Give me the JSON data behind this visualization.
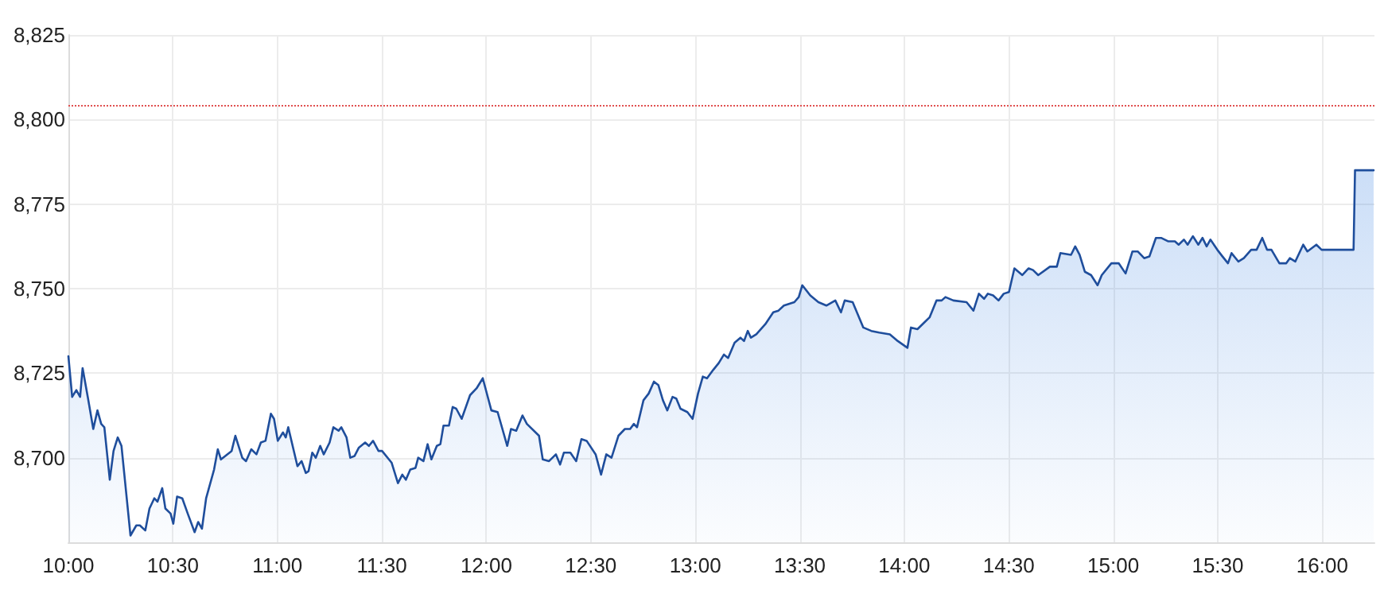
{
  "chart_data": {
    "type": "area",
    "xlim": [
      10,
      16.25
    ],
    "xticks": [
      {
        "value": 10,
        "label": "10:00"
      },
      {
        "value": 10.5,
        "label": "10:30"
      },
      {
        "value": 11,
        "label": "11:00"
      },
      {
        "value": 11.5,
        "label": "11:30"
      },
      {
        "value": 12,
        "label": "12:00"
      },
      {
        "value": 12.5,
        "label": "12:30"
      },
      {
        "value": 13,
        "label": "13:00"
      },
      {
        "value": 13.5,
        "label": "13:30"
      },
      {
        "value": 14,
        "label": "14:00"
      },
      {
        "value": 14.5,
        "label": "14:30"
      },
      {
        "value": 15,
        "label": "15:00"
      },
      {
        "value": 15.5,
        "label": "15:30"
      },
      {
        "value": 16,
        "label": "16:00"
      }
    ],
    "ylim": [
      8675,
      8825
    ],
    "yticks": [
      {
        "value": 8700,
        "label": "8,700"
      },
      {
        "value": 8725,
        "label": "8,725"
      },
      {
        "value": 8750,
        "label": "8,750"
      },
      {
        "value": 8775,
        "label": "8,775"
      },
      {
        "value": 8800,
        "label": "8,800"
      },
      {
        "value": 8825,
        "label": "8,825"
      }
    ],
    "grid": true,
    "marker": "none",
    "line_style": "solid",
    "ref_lines": [
      {
        "axis": "y",
        "value": 8804,
        "color": "#e05050",
        "line_style": "dotted"
      }
    ],
    "series": [
      {
        "color": "#1f4e9c",
        "x": [
          10.0,
          10.018,
          10.038,
          10.056,
          10.068,
          10.094,
          10.119,
          10.139,
          10.157,
          10.172,
          10.198,
          10.216,
          10.236,
          10.254,
          10.297,
          10.325,
          10.342,
          10.368,
          10.388,
          10.411,
          10.426,
          10.449,
          10.464,
          10.489,
          10.502,
          10.52,
          10.545,
          10.571,
          10.604,
          10.621,
          10.639,
          10.659,
          10.697,
          10.715,
          10.73,
          10.781,
          10.799,
          10.832,
          10.85,
          10.875,
          10.9,
          10.921,
          10.943,
          10.969,
          10.984,
          11.002,
          11.027,
          11.04,
          11.052,
          11.096,
          11.116,
          11.136,
          11.149,
          11.167,
          11.184,
          11.205,
          11.222,
          11.25,
          11.268,
          11.293,
          11.306,
          11.331,
          11.349,
          11.369,
          11.39,
          11.42,
          11.438,
          11.458,
          11.484,
          11.501,
          11.547,
          11.577,
          11.598,
          11.615,
          11.636,
          11.661,
          11.674,
          11.699,
          11.719,
          11.737,
          11.763,
          11.78,
          11.795,
          11.821,
          11.839,
          11.856,
          11.882,
          11.922,
          11.953,
          11.983,
          12.024,
          12.054,
          12.1,
          12.118,
          12.143,
          12.173,
          12.194,
          12.252,
          12.27,
          12.3,
          12.333,
          12.353,
          12.371,
          12.402,
          12.43,
          12.455,
          12.48,
          12.523,
          12.549,
          12.574,
          12.599,
          12.632,
          12.663,
          12.688,
          12.706,
          12.721,
          12.752,
          12.777,
          12.802,
          12.823,
          12.845,
          12.866,
          12.891,
          12.909,
          12.929,
          12.962,
          12.987,
          13.013,
          13.036,
          13.056,
          13.086,
          13.112,
          13.137,
          13.157,
          13.188,
          13.216,
          13.233,
          13.251,
          13.266,
          13.292,
          13.335,
          13.373,
          13.398,
          13.424,
          13.474,
          13.495,
          13.512,
          13.55,
          13.589,
          13.627,
          13.67,
          13.697,
          13.715,
          13.753,
          13.804,
          13.842,
          13.88,
          13.931,
          13.969,
          14.015,
          14.032,
          14.063,
          14.096,
          14.121,
          14.154,
          14.179,
          14.197,
          14.235,
          14.298,
          14.331,
          14.357,
          14.382,
          14.4,
          14.425,
          14.451,
          14.476,
          14.501,
          14.527,
          14.565,
          14.595,
          14.616,
          14.641,
          14.697,
          14.73,
          14.747,
          14.798,
          14.818,
          14.839,
          14.864,
          14.894,
          14.925,
          14.945,
          14.991,
          15.026,
          15.059,
          15.092,
          15.117,
          15.148,
          15.173,
          15.204,
          15.229,
          15.262,
          15.295,
          15.313,
          15.338,
          15.356,
          15.381,
          15.407,
          15.427,
          15.447,
          15.465,
          15.498,
          15.523,
          15.549,
          15.566,
          15.599,
          15.625,
          15.66,
          15.686,
          15.713,
          15.736,
          15.757,
          15.795,
          15.828,
          15.845,
          15.871,
          15.909,
          15.929,
          15.972,
          15.997,
          16.15,
          16.157,
          16.246
        ],
        "values": [
          8730,
          8718,
          8720,
          8718,
          8726.5,
          8717.5,
          8708.5,
          8714,
          8710,
          8709,
          8693.5,
          8702,
          8706,
          8703.5,
          8677,
          8680,
          8680,
          8678.5,
          8685,
          8688,
          8687,
          8691,
          8685,
          8683.5,
          8680.5,
          8688.5,
          8688,
          8683.5,
          8678,
          8681,
          8679,
          8688,
          8696.5,
          8702.5,
          8699.5,
          8702,
          8706.5,
          8700,
          8699,
          8702.5,
          8701,
          8704.5,
          8705,
          8713,
          8711.5,
          8705,
          8707.5,
          8706,
          8709,
          8697.5,
          8699,
          8695.5,
          8696,
          8701.5,
          8700,
          8703.5,
          8701,
          8704.5,
          8709,
          8708,
          8709,
          8706,
          8700,
          8700.5,
          8703,
          8704.5,
          8703.5,
          8705,
          8702,
          8702,
          8698.5,
          8692.5,
          8695,
          8693.5,
          8696.5,
          8697,
          8700,
          8699,
          8704,
          8699.5,
          8703.5,
          8704,
          8709.5,
          8709.5,
          8715,
          8714.5,
          8711.5,
          8718.5,
          8720.5,
          8723.5,
          8714,
          8713.5,
          8703.5,
          8708.5,
          8708,
          8712.5,
          8710,
          8706.5,
          8699.5,
          8699,
          8701,
          8698,
          8701.5,
          8701.5,
          8699,
          8705.5,
          8705,
          8701,
          8695,
          8701,
          8700,
          8706.5,
          8708.5,
          8708.5,
          8710,
          8709,
          8717,
          8719,
          8722.5,
          8721.5,
          8717,
          8714,
          8718,
          8717.5,
          8714.5,
          8713.5,
          8711.5,
          8719,
          8724,
          8723.5,
          8726,
          8728,
          8730.5,
          8729.5,
          8734,
          8735.5,
          8734.5,
          8737.5,
          8735.5,
          8736.5,
          8739.5,
          8743,
          8743.5,
          8745,
          8746,
          8747.5,
          8751,
          8748,
          8746,
          8745,
          8746.5,
          8743,
          8746.5,
          8746,
          8738.5,
          8737.5,
          8737,
          8736.5,
          8734.5,
          8732.5,
          8738.5,
          8738,
          8740,
          8741.5,
          8746.5,
          8746.5,
          8747.5,
          8746.5,
          8746,
          8743.5,
          8748.5,
          8747,
          8748.5,
          8748,
          8746.5,
          8748.5,
          8749,
          8756,
          8754,
          8756,
          8755.5,
          8754,
          8756.5,
          8756.5,
          8760.5,
          8760,
          8762.5,
          8760,
          8755,
          8754,
          8751,
          8754,
          8757.5,
          8757.5,
          8754.5,
          8761,
          8761,
          8759,
          8759.5,
          8765,
          8765,
          8764,
          8764,
          8763,
          8764.5,
          8763,
          8765.5,
          8763,
          8765,
          8762.5,
          8764.5,
          8761.5,
          8759.5,
          8757.5,
          8760.5,
          8758,
          8759,
          8761.5,
          8761.5,
          8765,
          8761.5,
          8761.5,
          8757.5,
          8757.5,
          8759,
          8758,
          8763,
          8761,
          8763,
          8761.5,
          8761.5,
          8785,
          8785
        ]
      }
    ]
  }
}
